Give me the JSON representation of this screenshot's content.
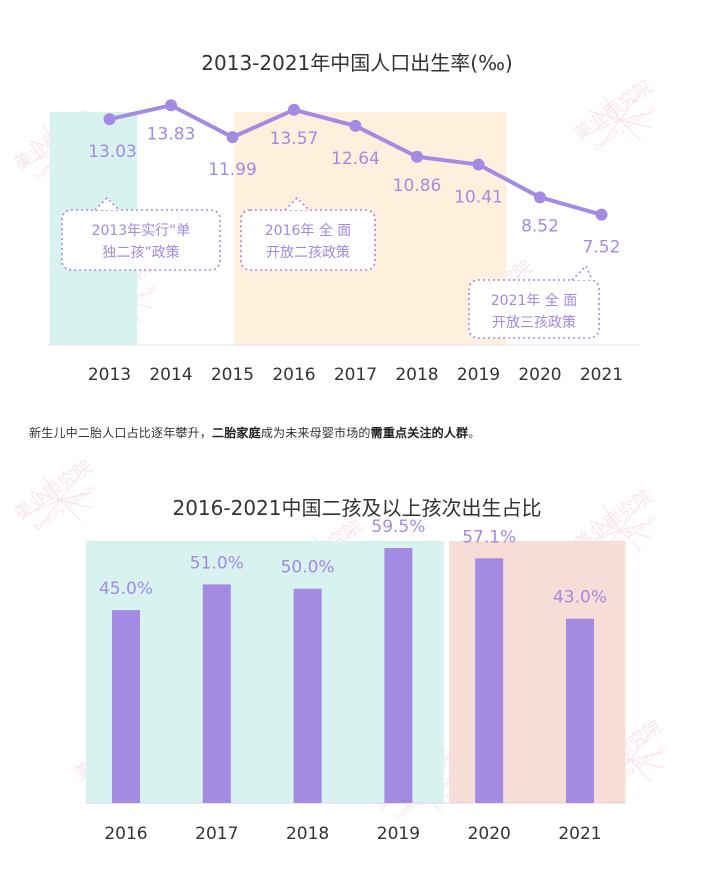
{
  "colors": {
    "accent": "#a38ae3",
    "label": "#a38ae3",
    "text": "#333333",
    "teal_band": "#d8f3ef",
    "peach_band": "#fff0dd",
    "pink_band": "#f7dcd8"
  },
  "caption": {
    "part1": "新生儿中二胎人口占比逐年攀升，",
    "part2": "二胎家庭",
    "part3": "成为未来母婴市场的",
    "part4": "需重点关注的人群",
    "part5": "。"
  },
  "watermark": {
    "cn": "美业颜究院",
    "en": "beauty data.ai"
  },
  "chart_data": [
    {
      "type": "line",
      "title": "2013-2021年中国人口出生率(‰)",
      "categories": [
        "2013",
        "2014",
        "2015",
        "2016",
        "2017",
        "2018",
        "2019",
        "2020",
        "2021"
      ],
      "values": [
        13.03,
        13.83,
        11.99,
        13.57,
        12.64,
        10.86,
        10.41,
        8.52,
        7.52
      ],
      "value_labels": [
        "13.03",
        "13.83",
        "11.99",
        "13.57",
        "12.64",
        "10.86",
        "10.41",
        "8.52",
        "7.52"
      ],
      "ylim": [
        0,
        15
      ],
      "grid": false,
      "highlight_bands": [
        {
          "from": "2013",
          "to": "2013",
          "color": "teal"
        },
        {
          "from": "2016",
          "to": "2019",
          "color": "peach"
        }
      ],
      "annotations": [
        {
          "line1": "2013年实行“单",
          "line2": "独二孩”政策"
        },
        {
          "line1": "2016年 全 面",
          "line2": "开放二孩政策"
        },
        {
          "line1": "2021年 全 面",
          "line2": "开放三孩政策"
        }
      ]
    },
    {
      "type": "bar",
      "title": "2016-2021中国二孩及以上孩次出生占比",
      "categories": [
        "2016",
        "2017",
        "2018",
        "2019",
        "2020",
        "2021"
      ],
      "values": [
        45.0,
        51.0,
        50.0,
        59.5,
        57.1,
        43.0
      ],
      "value_labels": [
        "45.0%",
        "51.0%",
        "50.0%",
        "59.5%",
        "57.1%",
        "43.0%"
      ],
      "ylim": [
        0,
        70
      ],
      "grid": false,
      "highlight_bands": [
        {
          "from": "2016",
          "to": "2019",
          "color": "teal"
        },
        {
          "from": "2020",
          "to": "2021",
          "color": "pink"
        }
      ]
    }
  ]
}
